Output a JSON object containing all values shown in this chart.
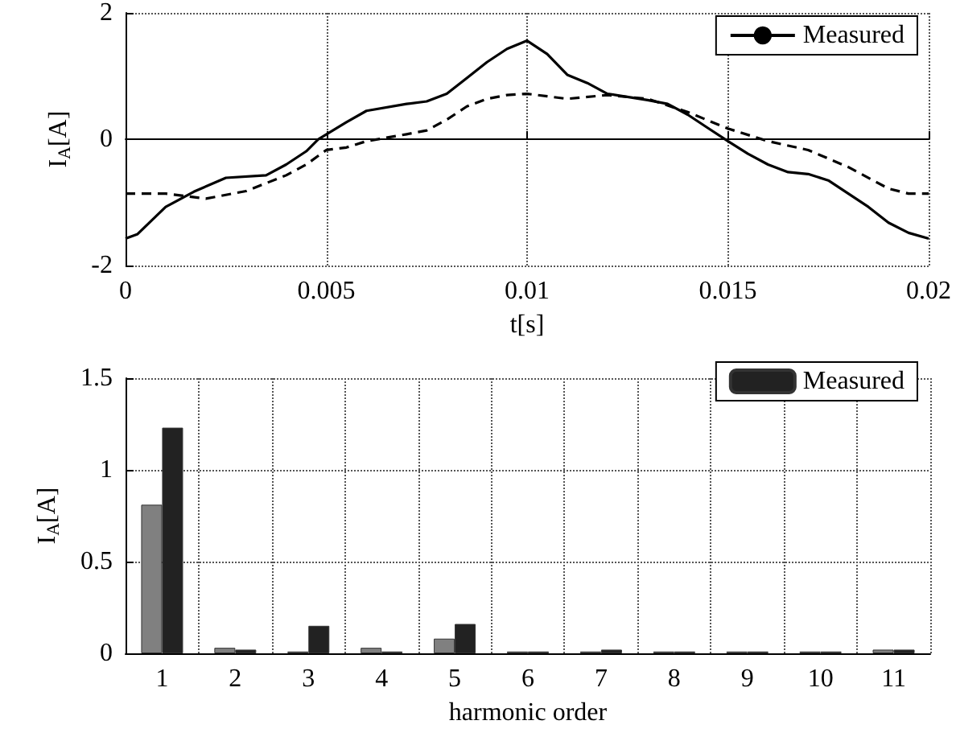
{
  "chart_data": [
    {
      "type": "line",
      "xlabel": "t[s]",
      "ylabel": "I$_{A}$[A]",
      "xlim": [
        0,
        0.02
      ],
      "xticks": [
        0,
        0.005,
        0.01,
        0.015,
        0.02
      ],
      "ylim": [
        -2,
        2
      ],
      "yticks": [
        -2,
        0,
        2
      ],
      "grid": true,
      "legend": "top right",
      "marker": "none",
      "series": [
        {
          "name": "Measured",
          "color": "#000000",
          "line_style": "solid",
          "x": [
            0,
            0.0003,
            0.001,
            0.0017,
            0.0025,
            0.0035,
            0.004,
            0.0045,
            0.0048,
            0.0055,
            0.006,
            0.007,
            0.0075,
            0.008,
            0.0085,
            0.009,
            0.0095,
            0.01,
            0.0105,
            0.011,
            0.0115,
            0.012,
            0.013,
            0.0135,
            0.014,
            0.0145,
            0.015,
            0.0155,
            0.016,
            0.0165,
            0.017,
            0.0175,
            0.018,
            0.0185,
            0.019,
            0.0195,
            0.02
          ],
          "values": [
            -1.57,
            -1.5,
            -1.07,
            -0.83,
            -0.61,
            -0.57,
            -0.4,
            -0.19,
            0,
            0.27,
            0.45,
            0.56,
            0.6,
            0.72,
            0.97,
            1.22,
            1.43,
            1.56,
            1.35,
            1.02,
            0.89,
            0.72,
            0.62,
            0.56,
            0.39,
            0.18,
            -0.03,
            -0.23,
            -0.4,
            -0.52,
            -0.55,
            -0.65,
            -0.86,
            -1.07,
            -1.32,
            -1.48,
            -1.57
          ]
        },
        {
          "color": "#000000",
          "line_style": "dashed",
          "x": [
            0,
            0.001,
            0.002,
            0.003,
            0.004,
            0.0045,
            0.005,
            0.0055,
            0.006,
            0.007,
            0.0075,
            0.008,
            0.0085,
            0.009,
            0.0095,
            0.01,
            0.0105,
            0.011,
            0.012,
            0.013,
            0.014,
            0.015,
            0.016,
            0.017,
            0.018,
            0.019,
            0.0195,
            0.02
          ],
          "values": [
            -0.86,
            -0.86,
            -0.94,
            -0.82,
            -0.57,
            -0.4,
            -0.17,
            -0.13,
            -0.03,
            0.08,
            0.14,
            0.31,
            0.52,
            0.64,
            0.7,
            0.72,
            0.68,
            0.64,
            0.7,
            0.64,
            0.43,
            0.17,
            -0.03,
            -0.17,
            -0.44,
            -0.78,
            -0.86,
            -0.86
          ]
        }
      ]
    },
    {
      "type": "bar",
      "xlabel": "harmonic order",
      "ylabel": "I$_{A}$[A]",
      "categories": [
        "1",
        "2",
        "3",
        "4",
        "5",
        "6",
        "7",
        "8",
        "9",
        "10",
        "11"
      ],
      "ylim": [
        0,
        1.5
      ],
      "yticks": [
        0,
        0.5,
        1,
        1.5
      ],
      "grid": true,
      "legend": "top right",
      "series": [
        {
          "color": "#808080",
          "values": [
            0.81,
            0.03,
            0.01,
            0.03,
            0.08,
            0.01,
            0.01,
            0.01,
            0.01,
            0.01,
            0.02
          ]
        },
        {
          "name": "Measured",
          "color": "#222222",
          "values": [
            1.23,
            0.02,
            0.15,
            0.01,
            0.16,
            0.01,
            0.02,
            0.01,
            0.01,
            0.01,
            0.02
          ]
        }
      ]
    }
  ]
}
